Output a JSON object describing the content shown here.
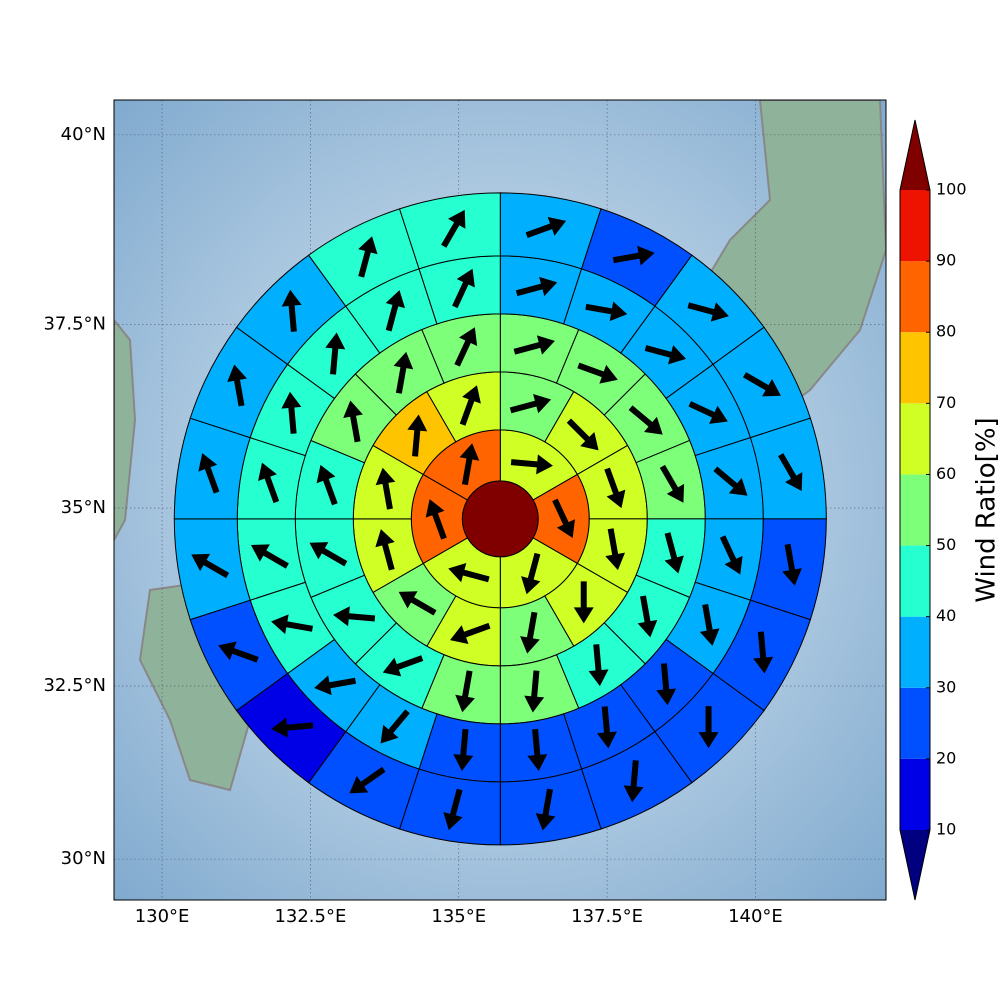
{
  "chart_data": {
    "type": "polar_map",
    "xlim": [
      129.19,
      142.2
    ],
    "ylim": [
      29.4,
      40.45
    ],
    "xticks": [
      {
        "value": 130,
        "label": "130°E"
      },
      {
        "value": 132.5,
        "label": "132.5°E"
      },
      {
        "value": 135,
        "label": "135°E"
      },
      {
        "value": 137.5,
        "label": "137.5°E"
      },
      {
        "value": 140,
        "label": "140°E"
      }
    ],
    "yticks": [
      {
        "value": 30,
        "label": "30°N"
      },
      {
        "value": 32.5,
        "label": "32.5°N"
      },
      {
        "value": 35,
        "label": "35°N"
      },
      {
        "value": 37.5,
        "label": "37.5°N"
      },
      {
        "value": 40,
        "label": "40°N"
      }
    ],
    "grid": true,
    "center": {
      "lon": 135.7,
      "lat": 34.85
    },
    "rings": [
      {
        "values": [
          105
        ]
      },
      {
        "values": [
          65,
          85,
          65,
          62,
          82,
          85
        ],
        "directions": [
          95,
          155,
          195,
          285,
          340,
          10
        ]
      },
      {
        "values": [
          55,
          65,
          65,
          65,
          65,
          55,
          62,
          55,
          62,
          63,
          75,
          65
        ],
        "directions": [
          75,
          135,
          160,
          170,
          180,
          190,
          250,
          300,
          345,
          350,
          5,
          20
        ]
      },
      {
        "values": [
          55,
          55,
          55,
          55,
          45,
          45,
          45,
          55,
          55,
          45,
          45,
          45,
          45,
          55,
          55,
          55
        ],
        "directions": [
          75,
          110,
          130,
          150,
          165,
          170,
          175,
          185,
          190,
          250,
          275,
          300,
          340,
          350,
          10,
          25
        ]
      },
      {
        "values": [
          35,
          35,
          35,
          35,
          35,
          35,
          35,
          25,
          25,
          25,
          25,
          35,
          35,
          45,
          45,
          45,
          45,
          45,
          45,
          45
        ],
        "directions": [
          75,
          100,
          105,
          115,
          130,
          155,
          170,
          175,
          175,
          175,
          185,
          220,
          260,
          280,
          300,
          340,
          355,
          5,
          15,
          25
        ]
      },
      {
        "values": [
          35,
          25,
          35,
          35,
          35,
          25,
          25,
          25,
          25,
          25,
          25,
          25,
          15,
          25,
          35,
          35,
          35,
          35,
          45,
          45
        ],
        "directions": [
          70,
          80,
          105,
          120,
          150,
          170,
          175,
          180,
          185,
          190,
          195,
          235,
          265,
          290,
          300,
          340,
          350,
          355,
          15,
          30
        ]
      }
    ],
    "colorbar": {
      "label": "Wind Ratio[%]",
      "ticks": [
        10,
        20,
        30,
        40,
        50,
        60,
        70,
        80,
        90,
        100
      ],
      "colors": [
        "#0000e6",
        "#0050ff",
        "#00b0ff",
        "#26ffd0",
        "#7dff7a",
        "#d0ff26",
        "#ffc400",
        "#ff6400",
        "#ee1200"
      ],
      "over_color": "#800000",
      "under_color": "#000080"
    }
  }
}
